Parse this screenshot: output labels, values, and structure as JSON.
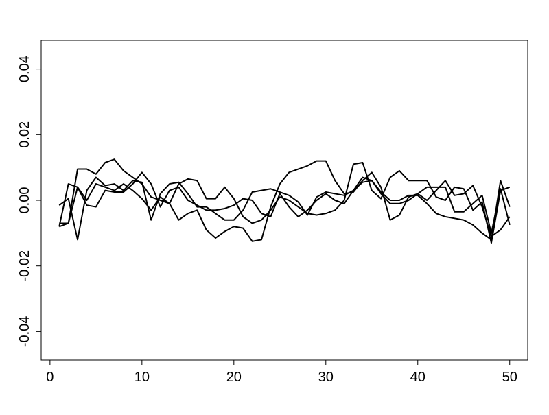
{
  "chart_data": {
    "type": "line",
    "x": [
      1,
      2,
      3,
      4,
      5,
      6,
      7,
      8,
      9,
      10,
      11,
      12,
      13,
      14,
      15,
      16,
      17,
      18,
      19,
      20,
      21,
      22,
      23,
      24,
      25,
      26,
      27,
      28,
      29,
      30,
      31,
      32,
      33,
      34,
      35,
      36,
      37,
      38,
      39,
      40,
      41,
      42,
      43,
      44,
      45,
      46,
      47,
      48,
      49,
      50
    ],
    "series": [
      {
        "color": "#000000",
        "values": [
          -0.008,
          -0.007,
          0.0095,
          0.0095,
          0.008,
          0.0115,
          0.0125,
          0.009,
          0.007,
          0.005,
          0.001,
          0.0,
          -0.001,
          0.005,
          0.0065,
          0.006,
          0.0005,
          0.0005,
          0.004,
          0.0005,
          -0.005,
          -0.007,
          -0.006,
          -0.003,
          0.001,
          0.0,
          -0.002,
          -0.004,
          -0.0045,
          -0.004,
          -0.003,
          0.0,
          0.011,
          0.0115,
          0.003,
          0.0005,
          0.007,
          0.009,
          0.006,
          0.006,
          0.006,
          0.001,
          0.0,
          0.004,
          0.0035,
          -0.003,
          -0.0005,
          -0.013,
          0.003,
          0.004
        ]
      },
      {
        "color": "#000000",
        "values": [
          -0.008,
          0.005,
          0.004,
          0.0,
          0.005,
          0.004,
          0.003,
          0.005,
          0.003,
          0.0005,
          -0.003,
          0.001,
          -0.001,
          -0.006,
          -0.004,
          -0.003,
          -0.009,
          -0.0115,
          -0.0095,
          -0.008,
          -0.0085,
          -0.0125,
          -0.012,
          -0.002,
          0.005,
          0.0085,
          0.0095,
          0.0105,
          0.012,
          0.012,
          0.006,
          0.002,
          0.0025,
          0.006,
          0.0085,
          0.004,
          -0.006,
          -0.0045,
          0.001,
          0.002,
          0.0,
          0.003,
          0.006,
          0.0015,
          0.002,
          0.0045,
          -0.002,
          -0.011,
          -0.009,
          -0.005
        ]
      },
      {
        "color": "#000000",
        "values": [
          -0.007,
          -0.007,
          0.004,
          -0.0015,
          -0.002,
          0.003,
          0.0025,
          0.0025,
          0.005,
          0.0085,
          0.005,
          -0.002,
          0.003,
          0.004,
          0.0,
          -0.0015,
          -0.003,
          -0.003,
          -0.0025,
          -0.0015,
          0.0005,
          0.0,
          -0.004,
          -0.005,
          0.002,
          -0.002,
          -0.005,
          -0.003,
          0.0,
          0.002,
          0.0,
          -0.001,
          0.003,
          0.007,
          0.006,
          0.002,
          -0.001,
          -0.001,
          0.0,
          0.002,
          0.004,
          0.004,
          0.004,
          -0.0035,
          -0.0035,
          -0.001,
          0.0015,
          -0.01,
          0.0035,
          -0.0075
        ]
      },
      {
        "color": "#000000",
        "values": [
          -0.0015,
          0.0005,
          -0.012,
          0.003,
          0.007,
          0.0045,
          0.005,
          0.003,
          0.006,
          0.0055,
          -0.006,
          0.002,
          0.005,
          0.0055,
          0.002,
          -0.002,
          -0.002,
          -0.004,
          -0.006,
          -0.006,
          -0.003,
          0.0025,
          0.003,
          0.0035,
          0.0025,
          0.0015,
          -0.0005,
          -0.0045,
          0.001,
          0.0025,
          0.002,
          0.0015,
          0.003,
          0.0055,
          0.006,
          0.0025,
          0.0,
          0.0,
          0.0015,
          0.0015,
          -0.001,
          -0.004,
          -0.005,
          -0.0055,
          -0.006,
          -0.0075,
          -0.01,
          -0.012,
          0.006,
          -0.002
        ]
      }
    ],
    "xlim": [
      -0.96,
      51.96
    ],
    "xticks": [
      0,
      10,
      20,
      30,
      40,
      50
    ],
    "ylim": [
      -0.0487,
      0.0487
    ],
    "yticks": [
      -0.04,
      -0.02,
      {
        "value": 0,
        "label": "0.00"
      },
      0.02,
      0.04
    ],
    "grid": false
  }
}
